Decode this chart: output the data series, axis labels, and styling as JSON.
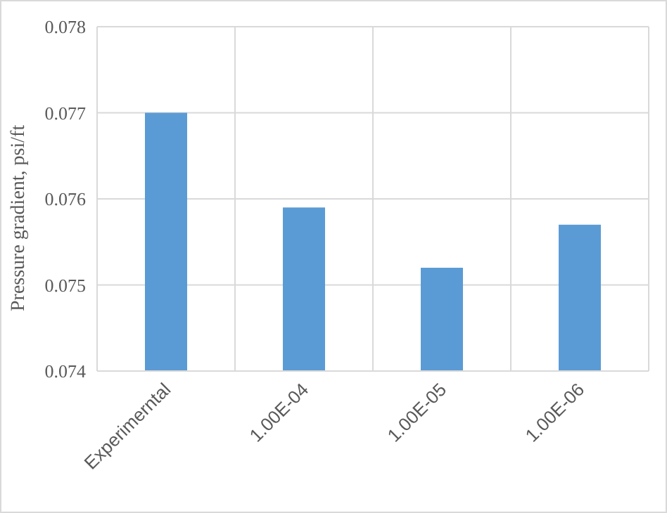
{
  "chart_data": {
    "type": "bar",
    "ylabel": "Pressure gradient, psi/ft",
    "categories": [
      "Experimerntal",
      "1.00E-04",
      "1.00E-05",
      "1.00E-06"
    ],
    "values": [
      0.077,
      0.0759,
      0.0752,
      0.0757
    ],
    "color": "#5b9bd5",
    "ylim": [
      0.074,
      0.078
    ],
    "yticks": [
      0.074,
      0.075,
      0.076,
      0.077,
      0.078
    ],
    "grid": true
  }
}
